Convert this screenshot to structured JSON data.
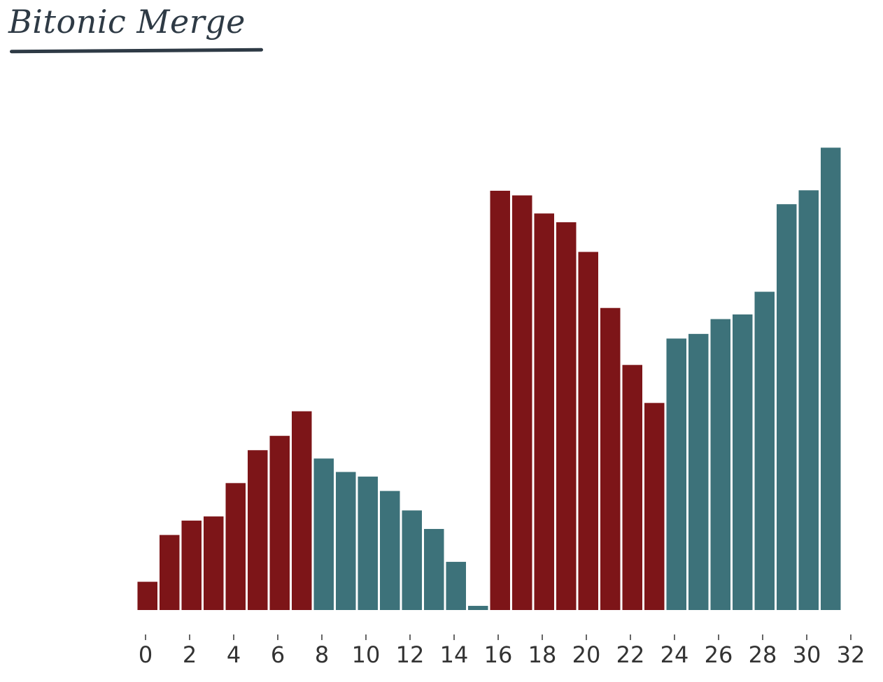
{
  "title": "Bitonic Merge",
  "colors": {
    "red": "#7d1518",
    "teal": "#3d727a",
    "axis": "#333333",
    "title": "#2e3a45"
  },
  "chart_data": {
    "type": "bar",
    "title": "Bitonic Merge",
    "xlabel": "",
    "ylabel": "",
    "x": [
      0,
      1,
      2,
      3,
      4,
      5,
      6,
      7,
      8,
      9,
      10,
      11,
      12,
      13,
      14,
      15,
      16,
      17,
      18,
      19,
      20,
      21,
      22,
      23,
      24,
      25,
      26,
      27,
      28,
      29,
      30,
      31
    ],
    "values": [
      6.1,
      16.2,
      19.3,
      20.2,
      27.4,
      34.5,
      37.6,
      42.9,
      32.7,
      29.8,
      28.8,
      25.7,
      21.5,
      17.5,
      10.4,
      0.9,
      90.5,
      89.5,
      85.6,
      83.7,
      77.3,
      65.2,
      52.9,
      44.7,
      58.6,
      59.6,
      62.8,
      63.8,
      68.7,
      87.6,
      90.6,
      99.8
    ],
    "colors": [
      "red",
      "red",
      "red",
      "red",
      "red",
      "red",
      "red",
      "red",
      "teal",
      "teal",
      "teal",
      "teal",
      "teal",
      "teal",
      "teal",
      "teal",
      "red",
      "red",
      "red",
      "red",
      "red",
      "red",
      "red",
      "red",
      "teal",
      "teal",
      "teal",
      "teal",
      "teal",
      "teal",
      "teal",
      "teal"
    ],
    "xticks": [
      0,
      2,
      4,
      6,
      8,
      10,
      12,
      14,
      16,
      18,
      20,
      22,
      24,
      26,
      28,
      30,
      32
    ],
    "xtick_labels": [
      "0",
      "2",
      "4",
      "6",
      "8",
      "10",
      "12",
      "14",
      "16",
      "18",
      "20",
      "22",
      "24",
      "26",
      "28",
      "30",
      "32"
    ],
    "xlim": [
      0,
      32
    ],
    "ylim": [
      0,
      100
    ],
    "grid": false,
    "legend": "none"
  }
}
